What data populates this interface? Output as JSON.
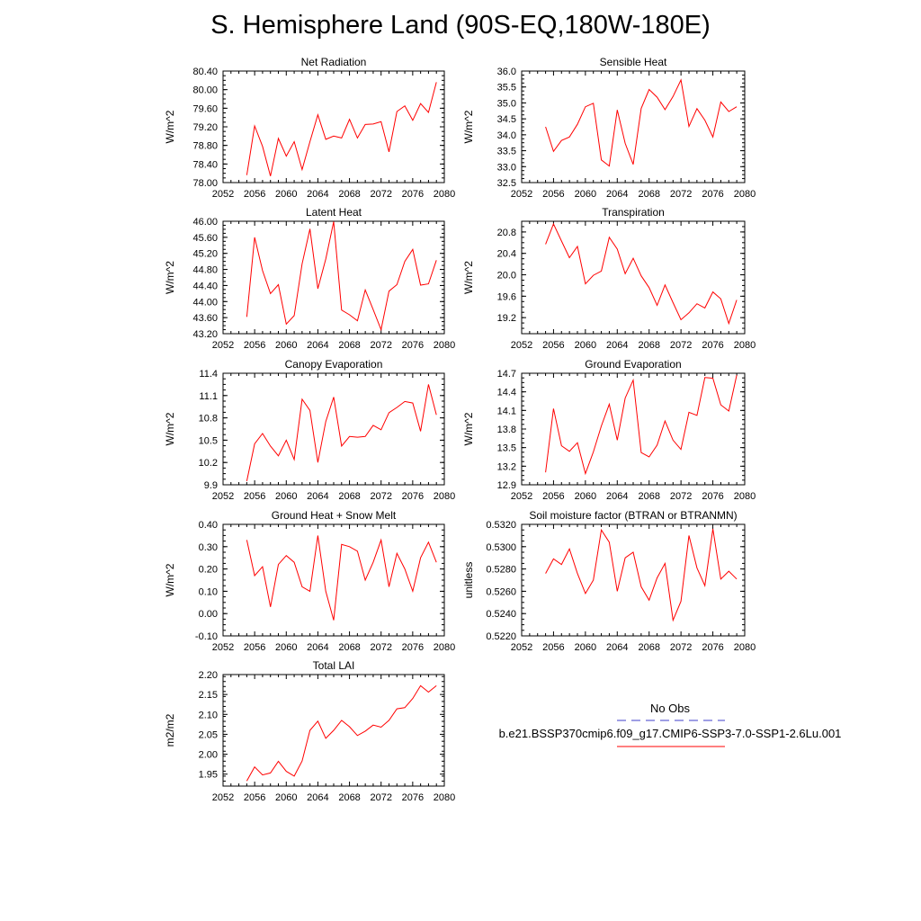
{
  "title": "S. Hemisphere Land (90S-EQ,180W-180E)",
  "colors": {
    "series": "#ff0000",
    "obs": "#3c3cc8",
    "axis": "#000000"
  },
  "chart_data": [
    {
      "type": "line",
      "title": "Net Radiation",
      "ylabel": "W/m^2",
      "xlim": [
        2052,
        2080
      ],
      "ylim": [
        78.0,
        80.4
      ],
      "xticks": [
        2052,
        2056,
        2060,
        2064,
        2068,
        2072,
        2076,
        2080
      ],
      "yticks": [
        "78.00",
        "78.40",
        "78.80",
        "79.20",
        "79.60",
        "80.00",
        "80.40"
      ],
      "x": [
        2055,
        2056,
        2057,
        2058,
        2059,
        2060,
        2061,
        2062,
        2063,
        2064,
        2065,
        2066,
        2067,
        2068,
        2069,
        2070,
        2071,
        2072,
        2073,
        2074,
        2075,
        2076,
        2077,
        2078,
        2079
      ],
      "series": [
        {
          "values": [
            78.16,
            79.22,
            78.78,
            78.14,
            78.95,
            78.57,
            78.88,
            78.28,
            78.88,
            79.46,
            78.93,
            79.0,
            78.96,
            79.36,
            78.96,
            79.25,
            79.26,
            79.31,
            78.66,
            79.53,
            79.65,
            79.34,
            79.7,
            79.51,
            80.16
          ]
        }
      ]
    },
    {
      "type": "line",
      "title": "Sensible Heat",
      "ylabel": "W/m^2",
      "xlim": [
        2052,
        2080
      ],
      "ylim": [
        32.5,
        36.0
      ],
      "xticks": [
        2052,
        2056,
        2060,
        2064,
        2068,
        2072,
        2076,
        2080
      ],
      "yticks": [
        "32.5",
        "33.0",
        "33.5",
        "34.0",
        "34.5",
        "35.0",
        "35.5",
        "36.0"
      ],
      "x": [
        2055,
        2056,
        2057,
        2058,
        2059,
        2060,
        2061,
        2062,
        2063,
        2064,
        2065,
        2066,
        2067,
        2068,
        2069,
        2070,
        2071,
        2072,
        2073,
        2074,
        2075,
        2076,
        2077,
        2078,
        2079
      ],
      "series": [
        {
          "values": [
            34.25,
            33.48,
            33.82,
            33.93,
            34.33,
            34.88,
            34.99,
            33.21,
            33.02,
            34.78,
            33.73,
            33.07,
            34.83,
            35.42,
            35.18,
            34.79,
            35.2,
            35.72,
            34.26,
            34.82,
            34.46,
            33.93,
            35.03,
            34.73,
            34.88
          ]
        }
      ]
    },
    {
      "type": "line",
      "title": "Latent Heat",
      "ylabel": "W/m^2",
      "xlim": [
        2052,
        2080
      ],
      "ylim": [
        43.2,
        46.0
      ],
      "xticks": [
        2052,
        2056,
        2060,
        2064,
        2068,
        2072,
        2076,
        2080
      ],
      "yticks": [
        "43.20",
        "43.60",
        "44.00",
        "44.40",
        "44.80",
        "45.20",
        "45.60",
        "46.00"
      ],
      "x": [
        2055,
        2056,
        2057,
        2058,
        2059,
        2060,
        2061,
        2062,
        2063,
        2064,
        2065,
        2066,
        2067,
        2068,
        2069,
        2070,
        2071,
        2072,
        2073,
        2074,
        2075,
        2076,
        2077,
        2078,
        2079
      ],
      "series": [
        {
          "values": [
            43.62,
            45.6,
            44.77,
            44.2,
            44.42,
            43.44,
            43.65,
            44.94,
            45.81,
            44.32,
            45.06,
            45.99,
            43.79,
            43.67,
            43.52,
            44.29,
            43.8,
            43.3,
            44.26,
            44.42,
            45.0,
            45.3,
            44.41,
            44.44,
            45.03
          ]
        }
      ]
    },
    {
      "type": "line",
      "title": "Transpiration",
      "ylabel": "W/m^2",
      "xlim": [
        2052,
        2080
      ],
      "ylim": [
        18.9,
        21.0
      ],
      "xticks": [
        2052,
        2056,
        2060,
        2064,
        2068,
        2072,
        2076,
        2080
      ],
      "yticks": [
        "19.2",
        "19.6",
        "20.0",
        "20.4",
        "20.8"
      ],
      "x": [
        2055,
        2056,
        2057,
        2058,
        2059,
        2060,
        2061,
        2062,
        2063,
        2064,
        2065,
        2066,
        2067,
        2068,
        2069,
        2070,
        2071,
        2072,
        2073,
        2074,
        2075,
        2076,
        2077,
        2078,
        2079
      ],
      "series": [
        {
          "values": [
            20.57,
            20.95,
            20.63,
            20.32,
            20.53,
            19.83,
            19.99,
            20.07,
            20.7,
            20.48,
            20.02,
            20.31,
            19.98,
            19.76,
            19.43,
            19.81,
            19.48,
            19.16,
            19.29,
            19.46,
            19.38,
            19.68,
            19.55,
            19.09,
            19.53
          ]
        }
      ]
    },
    {
      "type": "line",
      "title": "Canopy Evaporation",
      "ylabel": "W/m^2",
      "xlim": [
        2052,
        2080
      ],
      "ylim": [
        9.9,
        11.4
      ],
      "xticks": [
        2052,
        2056,
        2060,
        2064,
        2068,
        2072,
        2076,
        2080
      ],
      "yticks": [
        "9.9",
        "10.2",
        "10.5",
        "10.8",
        "11.1",
        "11.4"
      ],
      "x": [
        2055,
        2056,
        2057,
        2058,
        2059,
        2060,
        2061,
        2062,
        2063,
        2064,
        2065,
        2066,
        2067,
        2068,
        2069,
        2070,
        2071,
        2072,
        2073,
        2074,
        2075,
        2076,
        2077,
        2078,
        2079
      ],
      "series": [
        {
          "values": [
            9.95,
            10.45,
            10.59,
            10.42,
            10.29,
            10.5,
            10.24,
            11.05,
            10.9,
            10.2,
            10.75,
            11.08,
            10.42,
            10.55,
            10.54,
            10.55,
            10.7,
            10.64,
            10.87,
            10.94,
            11.02,
            11.0,
            10.62,
            11.25,
            10.84
          ]
        }
      ]
    },
    {
      "type": "line",
      "title": "Ground Evaporation",
      "ylabel": "W/m^2",
      "xlim": [
        2052,
        2080
      ],
      "ylim": [
        12.9,
        14.7
      ],
      "xticks": [
        2052,
        2056,
        2060,
        2064,
        2068,
        2072,
        2076,
        2080
      ],
      "yticks": [
        "12.9",
        "13.2",
        "13.5",
        "13.8",
        "14.1",
        "14.4",
        "14.7"
      ],
      "x": [
        2055,
        2056,
        2057,
        2058,
        2059,
        2060,
        2061,
        2062,
        2063,
        2064,
        2065,
        2066,
        2067,
        2068,
        2069,
        2070,
        2071,
        2072,
        2073,
        2074,
        2075,
        2076,
        2077,
        2078,
        2079
      ],
      "series": [
        {
          "values": [
            13.1,
            14.13,
            13.53,
            13.44,
            13.58,
            13.08,
            13.43,
            13.85,
            14.2,
            13.62,
            14.3,
            14.59,
            13.42,
            13.35,
            13.54,
            13.93,
            13.62,
            13.47,
            14.07,
            14.02,
            14.63,
            14.62,
            14.19,
            14.09,
            14.67
          ]
        }
      ]
    },
    {
      "type": "line",
      "title": "Ground Heat + Snow Melt",
      "ylabel": "W/m^2",
      "xlim": [
        2052,
        2080
      ],
      "ylim": [
        -0.1,
        0.4
      ],
      "xticks": [
        2052,
        2056,
        2060,
        2064,
        2068,
        2072,
        2076,
        2080
      ],
      "yticks": [
        "-0.10",
        "0.00",
        "0.10",
        "0.20",
        "0.30",
        "0.40"
      ],
      "x": [
        2055,
        2056,
        2057,
        2058,
        2059,
        2060,
        2061,
        2062,
        2063,
        2064,
        2065,
        2066,
        2067,
        2068,
        2069,
        2070,
        2071,
        2072,
        2073,
        2074,
        2075,
        2076,
        2077,
        2078,
        2079
      ],
      "series": [
        {
          "values": [
            0.33,
            0.17,
            0.21,
            0.03,
            0.22,
            0.26,
            0.23,
            0.12,
            0.1,
            0.35,
            0.1,
            -0.03,
            0.31,
            0.3,
            0.28,
            0.15,
            0.23,
            0.33,
            0.12,
            0.27,
            0.2,
            0.1,
            0.25,
            0.32,
            0.23
          ]
        }
      ]
    },
    {
      "type": "line",
      "title": "Soil moisture factor (BTRAN or BTRANMN)",
      "ylabel": "unitless",
      "xlim": [
        2052,
        2080
      ],
      "ylim": [
        0.522,
        0.532
      ],
      "xticks": [
        2052,
        2056,
        2060,
        2064,
        2068,
        2072,
        2076,
        2080
      ],
      "yticks": [
        "0.5220",
        "0.5240",
        "0.5260",
        "0.5280",
        "0.5300",
        "0.5320"
      ],
      "x": [
        2055,
        2056,
        2057,
        2058,
        2059,
        2060,
        2061,
        2062,
        2063,
        2064,
        2065,
        2066,
        2067,
        2068,
        2069,
        2070,
        2071,
        2072,
        2073,
        2074,
        2075,
        2076,
        2077,
        2078,
        2079
      ],
      "series": [
        {
          "values": [
            0.5276,
            0.5289,
            0.5284,
            0.5298,
            0.5276,
            0.5258,
            0.527,
            0.5315,
            0.5304,
            0.526,
            0.529,
            0.5295,
            0.5264,
            0.5252,
            0.5272,
            0.5285,
            0.5234,
            0.5251,
            0.531,
            0.5281,
            0.5265,
            0.5316,
            0.5271,
            0.5278,
            0.5271
          ]
        }
      ]
    },
    {
      "type": "line",
      "title": "Total LAI",
      "ylabel": "m2/m2",
      "xlim": [
        2052,
        2080
      ],
      "ylim": [
        1.92,
        2.2
      ],
      "xticks": [
        2052,
        2056,
        2060,
        2064,
        2068,
        2072,
        2076,
        2080
      ],
      "yticks": [
        "1.95",
        "2.00",
        "2.05",
        "2.10",
        "2.15",
        "2.20"
      ],
      "x": [
        2055,
        2056,
        2057,
        2058,
        2059,
        2060,
        2061,
        2062,
        2063,
        2064,
        2065,
        2066,
        2067,
        2068,
        2069,
        2070,
        2071,
        2072,
        2073,
        2074,
        2075,
        2076,
        2077,
        2078,
        2079
      ],
      "series": [
        {
          "values": [
            1.933,
            1.968,
            1.948,
            1.953,
            1.982,
            1.957,
            1.945,
            1.983,
            2.06,
            2.083,
            2.04,
            2.06,
            2.085,
            2.069,
            2.047,
            2.058,
            2.073,
            2.068,
            2.085,
            2.114,
            2.117,
            2.14,
            2.172,
            2.156,
            2.172
          ]
        }
      ]
    }
  ],
  "legend": {
    "items": [
      {
        "label": "No Obs",
        "style": "dashed",
        "color": "#3c3cc8"
      },
      {
        "label": "b.e21.BSSP370cmip6.f09_g17.CMIP6-SSP3-7.0-SSP1-2.6Lu.001",
        "style": "solid",
        "color": "#ff0000"
      }
    ]
  }
}
